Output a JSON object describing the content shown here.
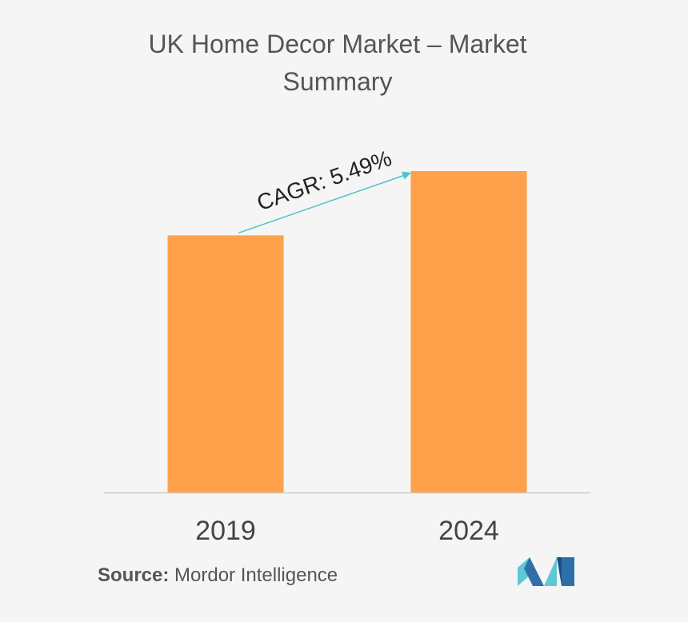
{
  "chart_data": {
    "type": "bar",
    "title": "UK Home Decor Market – Market Summary",
    "categories": [
      "2019",
      "2024"
    ],
    "values": [
      80,
      100
    ],
    "color": "#ffa04a",
    "ylim": [
      0,
      100
    ],
    "annotation": "CAGR: 5.49%",
    "source_label": "Source:",
    "source": "Mordor Intelligence"
  }
}
